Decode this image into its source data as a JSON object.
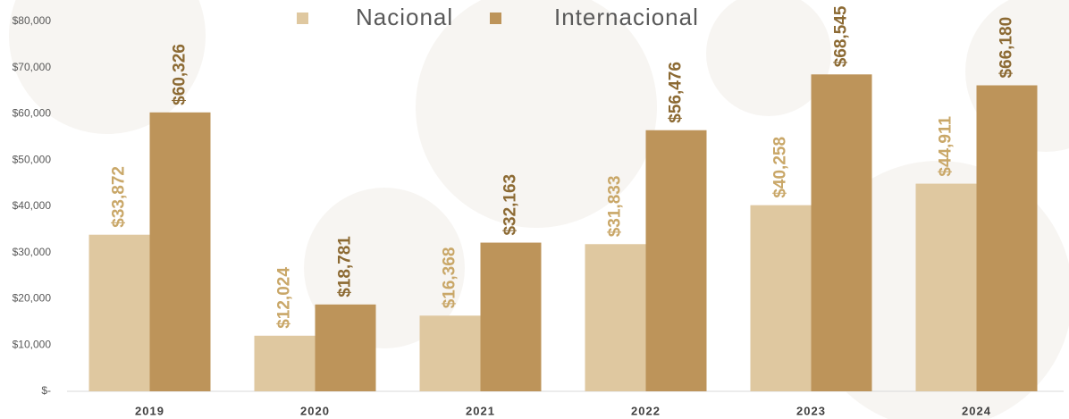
{
  "chart_data": {
    "type": "bar",
    "categories": [
      "2019",
      "2020",
      "2021",
      "2022",
      "2023",
      "2024"
    ],
    "series": [
      {
        "name": "Nacional",
        "color": "#dfc8a0",
        "label_color": "#c9a768",
        "values": [
          33872,
          12024,
          16368,
          31833,
          40258,
          44911
        ],
        "value_labels": [
          "$33,872",
          "$12,024",
          "$16,368",
          "$31,833",
          "$40,258",
          "$44,911"
        ]
      },
      {
        "name": "Internacional",
        "color": "#bd945a",
        "label_color": "#8c6a33",
        "values": [
          60326,
          18781,
          32163,
          56476,
          68545,
          66180
        ],
        "value_labels": [
          "$60,326",
          "$18,781",
          "$32,163",
          "$56,476",
          "$68,545",
          "$66,180"
        ]
      }
    ],
    "ylim": [
      0,
      80000
    ],
    "yticks": [
      {
        "value": 0,
        "label": "$-"
      },
      {
        "value": 10000,
        "label": "$10,000"
      },
      {
        "value": 20000,
        "label": "$20,000"
      },
      {
        "value": 30000,
        "label": "$30,000"
      },
      {
        "value": 40000,
        "label": "$40,000"
      },
      {
        "value": 50000,
        "label": "$50,000"
      },
      {
        "value": 60000,
        "label": "$60,000"
      },
      {
        "value": 70000,
        "label": "$70,000"
      },
      {
        "value": 80000,
        "label": "$80,000"
      }
    ],
    "grid": false
  }
}
